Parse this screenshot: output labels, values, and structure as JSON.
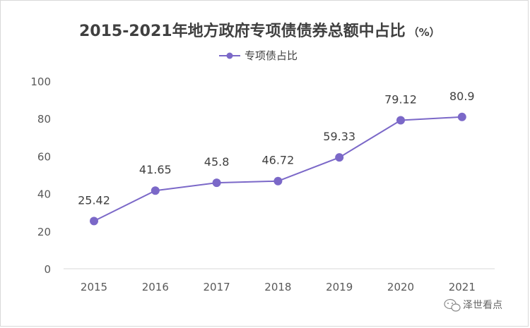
{
  "chart_data": {
    "type": "line",
    "title": "2015-2021年地方政府专项债债券总额中占比",
    "title_unit": "（%）",
    "categories": [
      "2015",
      "2016",
      "2017",
      "2018",
      "2019",
      "2020",
      "2021"
    ],
    "series": [
      {
        "name": "专项债占比",
        "values": [
          25.42,
          41.65,
          45.8,
          46.72,
          59.33,
          79.12,
          80.9
        ],
        "labels": [
          "25.42",
          "41.65",
          "45.8",
          "46.72",
          "59.33",
          "79.12",
          "80.9"
        ],
        "color": "#7b68c8"
      }
    ],
    "ylim": [
      0,
      100
    ],
    "yticks": [
      0,
      20,
      40,
      60,
      80,
      100
    ],
    "grid": false,
    "legend": "top-center"
  },
  "watermark": {
    "text": "泽世看点",
    "icon": "wechat-icon"
  }
}
